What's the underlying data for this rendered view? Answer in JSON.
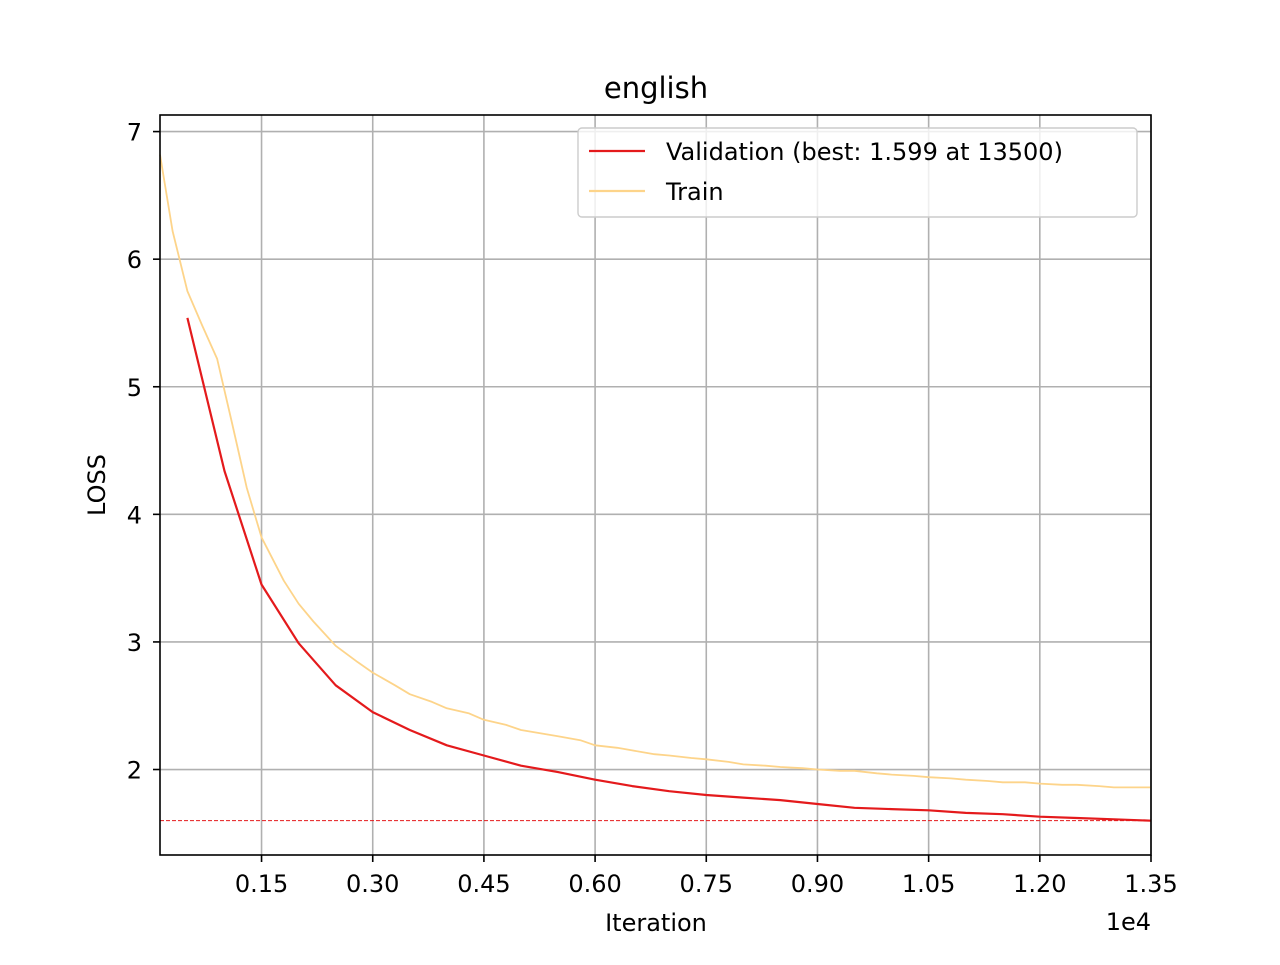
{
  "chart_data": {
    "type": "line",
    "title": "english",
    "xlabel": "Iteration",
    "ylabel": "LOSS",
    "x_offset_label": "1e4",
    "xlim": [
      0.013,
      1.35
    ],
    "ylim": [
      1.33,
      7.13
    ],
    "grid": true,
    "legend_position": "top-right",
    "x_ticks": [
      0.15,
      0.3,
      0.45,
      0.6,
      0.75,
      0.9,
      1.05,
      1.2,
      1.35
    ],
    "x_tick_labels": [
      "0.15",
      "0.30",
      "0.45",
      "0.60",
      "0.75",
      "0.90",
      "1.05",
      "1.20",
      "1.35"
    ],
    "y_ticks": [
      2,
      3,
      4,
      5,
      6,
      7
    ],
    "y_tick_labels": [
      "2",
      "3",
      "4",
      "5",
      "6",
      "7"
    ],
    "best_line": {
      "y": 1.599,
      "color": "#e41a1c"
    },
    "series": [
      {
        "name": "Validation (best: 1.599 at 13500)",
        "color": "#e41a1c",
        "x": [
          0.05,
          0.1,
          0.15,
          0.2,
          0.25,
          0.3,
          0.35,
          0.4,
          0.45,
          0.5,
          0.55,
          0.6,
          0.65,
          0.7,
          0.75,
          0.8,
          0.85,
          0.9,
          0.95,
          1.0,
          1.05,
          1.1,
          1.15,
          1.2,
          1.25,
          1.3,
          1.35
        ],
        "values": [
          5.54,
          4.34,
          3.45,
          2.99,
          2.66,
          2.45,
          2.31,
          2.19,
          2.11,
          2.03,
          1.98,
          1.92,
          1.87,
          1.83,
          1.8,
          1.78,
          1.76,
          1.73,
          1.7,
          1.69,
          1.68,
          1.66,
          1.65,
          1.63,
          1.62,
          1.61,
          1.599
        ]
      },
      {
        "name": "Train",
        "color": "#fdd48a",
        "x": [
          0.013,
          0.03,
          0.05,
          0.07,
          0.09,
          0.11,
          0.13,
          0.15,
          0.18,
          0.2,
          0.22,
          0.25,
          0.28,
          0.3,
          0.33,
          0.35,
          0.38,
          0.4,
          0.43,
          0.45,
          0.48,
          0.5,
          0.53,
          0.55,
          0.58,
          0.6,
          0.63,
          0.65,
          0.68,
          0.7,
          0.73,
          0.75,
          0.78,
          0.8,
          0.83,
          0.85,
          0.88,
          0.9,
          0.93,
          0.95,
          0.98,
          1.0,
          1.03,
          1.05,
          1.08,
          1.1,
          1.13,
          1.15,
          1.18,
          1.2,
          1.23,
          1.25,
          1.28,
          1.3,
          1.33,
          1.35
        ],
        "values": [
          6.82,
          6.22,
          5.75,
          5.48,
          5.22,
          4.72,
          4.21,
          3.82,
          3.48,
          3.3,
          3.16,
          2.97,
          2.84,
          2.76,
          2.66,
          2.59,
          2.53,
          2.48,
          2.44,
          2.39,
          2.35,
          2.31,
          2.28,
          2.26,
          2.23,
          2.19,
          2.17,
          2.15,
          2.12,
          2.11,
          2.09,
          2.08,
          2.06,
          2.04,
          2.03,
          2.02,
          2.01,
          2.0,
          1.99,
          1.99,
          1.97,
          1.96,
          1.95,
          1.94,
          1.93,
          1.92,
          1.91,
          1.9,
          1.9,
          1.89,
          1.88,
          1.88,
          1.87,
          1.86,
          1.86,
          1.86
        ]
      }
    ]
  }
}
